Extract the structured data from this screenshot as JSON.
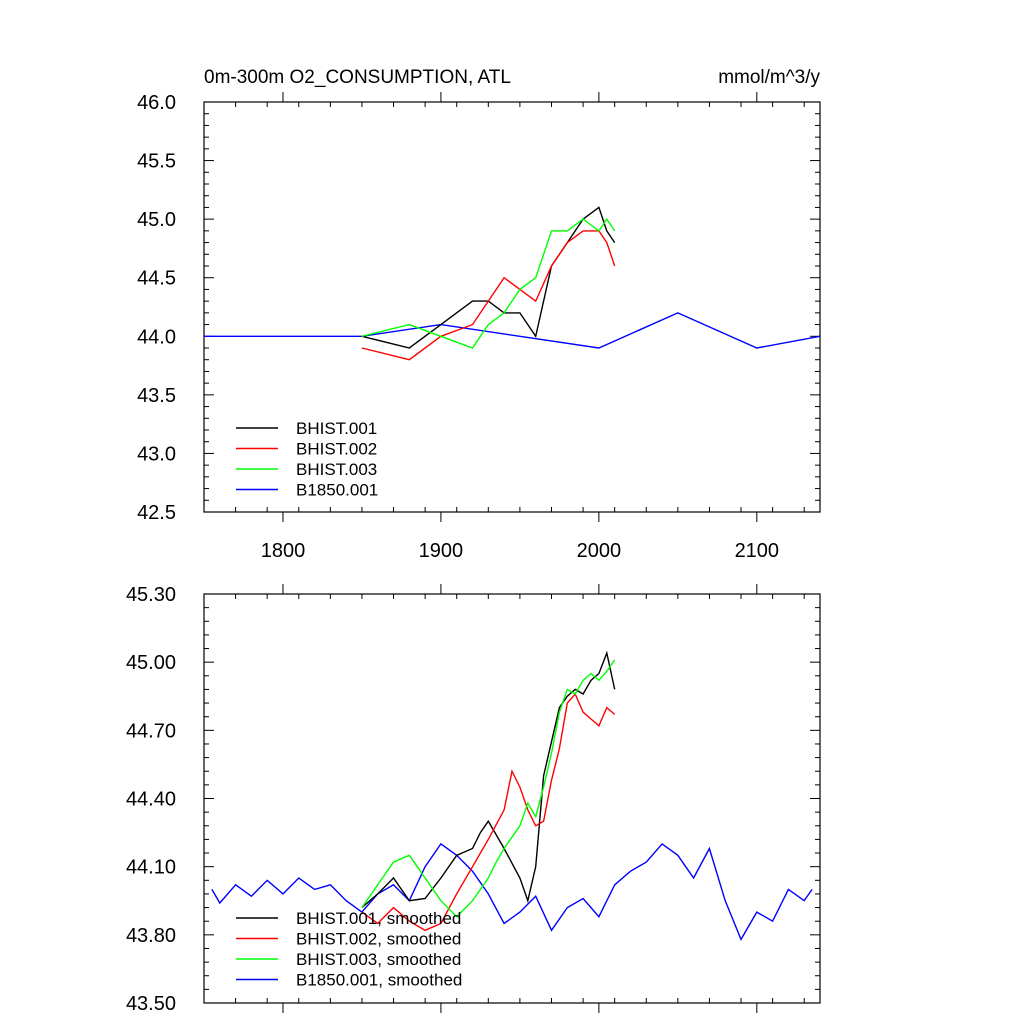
{
  "chart_data": [
    {
      "type": "line",
      "title": "0m-300m O2_CONSUMPTION, ATL",
      "units": "mmol/m^3/y",
      "xlim": [
        1750,
        2140
      ],
      "ylim": [
        42.5,
        46.0
      ],
      "xticks": [
        1800,
        1900,
        2000,
        2100
      ],
      "yticks": [
        42.5,
        43.0,
        43.5,
        44.0,
        44.5,
        45.0,
        45.5,
        46.0
      ],
      "ytick_labels": [
        "42.5",
        "43.0",
        "43.5",
        "44.0",
        "44.5",
        "45.0",
        "45.5",
        "46.0"
      ],
      "legend_position": "bottom-left",
      "series": [
        {
          "name": "BHIST.001",
          "color": "#000000",
          "x": [
            1850,
            1880,
            1900,
            1920,
            1930,
            1940,
            1950,
            1960,
            1970,
            1980,
            1990,
            2000,
            2005,
            2010
          ],
          "y": [
            44.0,
            43.9,
            44.1,
            44.3,
            44.3,
            44.2,
            44.2,
            44.0,
            44.6,
            44.8,
            45.0,
            45.1,
            44.9,
            44.8
          ]
        },
        {
          "name": "BHIST.002",
          "color": "#ff0000",
          "x": [
            1850,
            1880,
            1900,
            1920,
            1930,
            1940,
            1950,
            1960,
            1970,
            1980,
            1990,
            2000,
            2005,
            2010
          ],
          "y": [
            43.9,
            43.8,
            44.0,
            44.1,
            44.3,
            44.5,
            44.4,
            44.3,
            44.6,
            44.8,
            44.9,
            44.9,
            44.8,
            44.6
          ]
        },
        {
          "name": "BHIST.003",
          "color": "#00ff00",
          "x": [
            1850,
            1880,
            1900,
            1920,
            1930,
            1940,
            1950,
            1960,
            1970,
            1980,
            1990,
            2000,
            2005,
            2010
          ],
          "y": [
            44.0,
            44.1,
            44.0,
            43.9,
            44.1,
            44.2,
            44.4,
            44.5,
            44.9,
            44.9,
            45.0,
            44.9,
            45.0,
            44.9
          ]
        },
        {
          "name": "B1850.001",
          "color": "#0000ff",
          "x": [
            1750,
            1800,
            1850,
            1900,
            1950,
            2000,
            2050,
            2100,
            2140
          ],
          "y": [
            44.0,
            44.0,
            44.0,
            44.1,
            44.0,
            43.9,
            44.2,
            43.9,
            44.0
          ]
        }
      ]
    },
    {
      "type": "line",
      "xlim": [
        1750,
        2140
      ],
      "ylim": [
        43.5,
        45.3
      ],
      "xticks": [
        1800,
        1900,
        2000,
        2100
      ],
      "yticks": [
        43.5,
        43.8,
        44.1,
        44.4,
        44.7,
        45.0,
        45.3
      ],
      "ytick_labels": [
        "43.50",
        "43.80",
        "44.10",
        "44.40",
        "44.70",
        "45.00",
        "45.30"
      ],
      "legend_position": "bottom-left",
      "series": [
        {
          "name": "BHIST.001, smoothed",
          "color": "#000000",
          "x": [
            1850,
            1860,
            1870,
            1880,
            1890,
            1900,
            1910,
            1920,
            1925,
            1930,
            1940,
            1950,
            1955,
            1960,
            1965,
            1970,
            1975,
            1980,
            1985,
            1990,
            1995,
            2000,
            2005,
            2010
          ],
          "y": [
            43.92,
            43.98,
            44.05,
            43.95,
            43.96,
            44.05,
            44.15,
            44.18,
            44.25,
            44.3,
            44.18,
            44.05,
            43.95,
            44.1,
            44.5,
            44.65,
            44.8,
            44.85,
            44.88,
            44.86,
            44.92,
            44.95,
            45.04,
            44.88
          ]
        },
        {
          "name": "BHIST.002, smoothed",
          "color": "#ff0000",
          "x": [
            1850,
            1860,
            1870,
            1880,
            1890,
            1900,
            1910,
            1920,
            1930,
            1940,
            1945,
            1950,
            1955,
            1960,
            1965,
            1970,
            1975,
            1980,
            1985,
            1990,
            1995,
            2000,
            2005,
            2010
          ],
          "y": [
            43.9,
            43.85,
            43.92,
            43.86,
            43.82,
            43.85,
            43.98,
            44.1,
            44.22,
            44.35,
            44.52,
            44.45,
            44.35,
            44.28,
            44.3,
            44.48,
            44.62,
            44.82,
            44.86,
            44.78,
            44.75,
            44.72,
            44.8,
            44.77
          ]
        },
        {
          "name": "BHIST.003, smoothed",
          "color": "#00ff00",
          "x": [
            1850,
            1860,
            1870,
            1880,
            1890,
            1900,
            1910,
            1920,
            1930,
            1935,
            1940,
            1950,
            1955,
            1960,
            1965,
            1970,
            1975,
            1980,
            1985,
            1990,
            1995,
            2000,
            2005,
            2010
          ],
          "y": [
            43.92,
            44.02,
            44.12,
            44.15,
            44.05,
            43.95,
            43.88,
            43.95,
            44.05,
            44.12,
            44.18,
            44.28,
            44.38,
            44.32,
            44.45,
            44.6,
            44.78,
            44.88,
            44.86,
            44.92,
            44.95,
            44.92,
            44.96,
            45.01
          ]
        },
        {
          "name": "B1850.001, smoothed",
          "color": "#0000ff",
          "x": [
            1755,
            1760,
            1770,
            1780,
            1790,
            1800,
            1810,
            1820,
            1830,
            1840,
            1850,
            1860,
            1870,
            1880,
            1890,
            1900,
            1910,
            1920,
            1930,
            1940,
            1950,
            1960,
            1970,
            1980,
            1990,
            2000,
            2010,
            2020,
            2030,
            2040,
            2050,
            2060,
            2070,
            2080,
            2090,
            2100,
            2110,
            2120,
            2130,
            2135
          ],
          "y": [
            44.0,
            43.94,
            44.02,
            43.97,
            44.04,
            43.98,
            44.05,
            44.0,
            44.02,
            43.95,
            43.9,
            43.98,
            44.02,
            43.95,
            44.1,
            44.2,
            44.15,
            44.08,
            43.98,
            43.85,
            43.9,
            43.97,
            43.82,
            43.92,
            43.96,
            43.88,
            44.02,
            44.08,
            44.12,
            44.2,
            44.15,
            44.05,
            44.18,
            43.95,
            43.78,
            43.9,
            43.86,
            44.0,
            43.95,
            44.0
          ]
        }
      ]
    }
  ]
}
